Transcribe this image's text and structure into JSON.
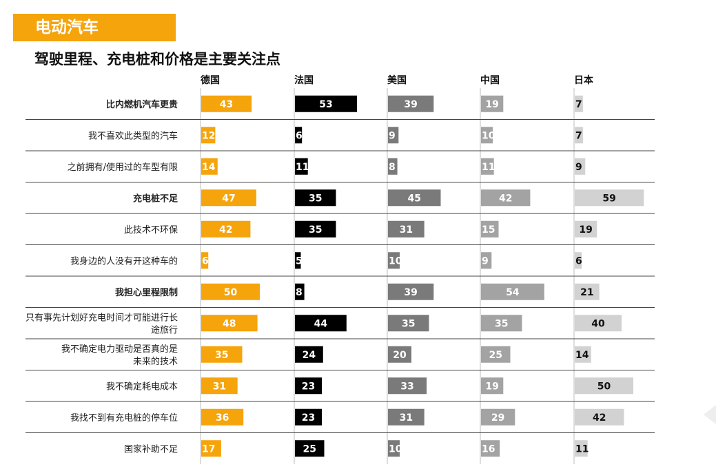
{
  "header": {
    "tag": "电动汽车",
    "subtitle": "驾驶里程、充电桩和价格是主要关注点"
  },
  "chart_data": {
    "type": "bar",
    "orientation": "horizontal",
    "categories": [
      "比内燃机汽车更贵",
      "我不喜欢此类型的汽车",
      "之前拥有/使用过的车型有限",
      "充电桩不足",
      "此技术不环保",
      "我身边的人没有开这种车的",
      "我担心里程限制",
      "只有事先计划好充电时间才可能进行长途旅行",
      "我不确定电力驱动是否真的是未来的技术",
      "我不确定耗电成本",
      "我找不到有充电桩的停车位",
      "国家补助不足"
    ],
    "category_lines": [
      [
        "比内燃机汽车更贵"
      ],
      [
        "我不喜欢此类型的汽车"
      ],
      [
        "之前拥有/使用过的车型有限"
      ],
      [
        "充电桩不足"
      ],
      [
        "此技术不环保"
      ],
      [
        "我身边的人没有开这种车的"
      ],
      [
        "我担心里程限制"
      ],
      [
        "只有事先计划好充电时间才可能进行长",
        "途旅行"
      ],
      [
        "我不确定电力驱动是否真的是",
        "未来的技术"
      ],
      [
        "我不确定耗电成本"
      ],
      [
        "我找不到有充电桩的停车位"
      ],
      [
        "国家补助不足"
      ]
    ],
    "bold_categories": [
      0,
      3,
      6
    ],
    "series": [
      {
        "name": "德国",
        "color": "#f5a40c",
        "label_color": "#ffffff",
        "values": [
          43,
          12,
          14,
          47,
          42,
          6,
          50,
          48,
          35,
          31,
          36,
          17
        ]
      },
      {
        "name": "法国",
        "color": "#000000",
        "label_color": "#ffffff",
        "values": [
          53,
          6,
          11,
          35,
          35,
          5,
          8,
          44,
          24,
          23,
          23,
          25
        ]
      },
      {
        "name": "美国",
        "color": "#7a7a7a",
        "label_color": "#ffffff",
        "values": [
          39,
          9,
          8,
          45,
          31,
          10,
          39,
          35,
          20,
          33,
          31,
          10
        ]
      },
      {
        "name": "中国",
        "color": "#a3a3a3",
        "label_color": "#ffffff",
        "values": [
          19,
          10,
          11,
          42,
          15,
          9,
          54,
          35,
          25,
          19,
          29,
          16
        ]
      },
      {
        "name": "日本",
        "color": "#d2d2d2",
        "label_color": "#111111",
        "values": [
          7,
          7,
          9,
          59,
          19,
          6,
          21,
          40,
          14,
          50,
          42,
          11
        ]
      }
    ],
    "xlim": [
      0,
      60
    ],
    "grid": false,
    "legend": "column headers on top"
  }
}
